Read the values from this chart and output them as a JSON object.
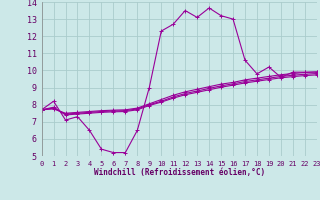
{
  "xlabel": "Windchill (Refroidissement éolien,°C)",
  "bg_color": "#cce8e8",
  "grid_color": "#aacccc",
  "line_color": "#990099",
  "xlim": [
    0,
    23
  ],
  "ylim": [
    5,
    14
  ],
  "xticks": [
    0,
    1,
    2,
    3,
    4,
    5,
    6,
    7,
    8,
    9,
    10,
    11,
    12,
    13,
    14,
    15,
    16,
    17,
    18,
    19,
    20,
    21,
    22,
    23
  ],
  "yticks": [
    5,
    6,
    7,
    8,
    9,
    10,
    11,
    12,
    13,
    14
  ],
  "series": [
    {
      "x": [
        0,
        1,
        2,
        3,
        4,
        5,
        6,
        7,
        8,
        9,
        10,
        11,
        12,
        13,
        14,
        15,
        16,
        17,
        18,
        19,
        20,
        21,
        22,
        23
      ],
      "y": [
        7.7,
        8.2,
        7.1,
        7.3,
        6.5,
        5.4,
        5.2,
        5.2,
        6.5,
        9.0,
        12.3,
        12.7,
        13.5,
        13.1,
        13.65,
        13.2,
        13.0,
        10.6,
        9.8,
        10.2,
        9.6,
        9.9,
        9.9,
        9.9
      ]
    },
    {
      "x": [
        0,
        1,
        2,
        3,
        4,
        5,
        6,
        7,
        8,
        9,
        10,
        11,
        12,
        13,
        14,
        15,
        16,
        17,
        18,
        19,
        20,
        21,
        22,
        23
      ],
      "y": [
        7.7,
        7.75,
        7.5,
        7.55,
        7.6,
        7.65,
        7.68,
        7.7,
        7.8,
        8.05,
        8.3,
        8.55,
        8.75,
        8.9,
        9.05,
        9.2,
        9.3,
        9.45,
        9.55,
        9.65,
        9.75,
        9.82,
        9.88,
        9.92
      ]
    },
    {
      "x": [
        0,
        1,
        2,
        3,
        4,
        5,
        6,
        7,
        8,
        9,
        10,
        11,
        12,
        13,
        14,
        15,
        16,
        17,
        18,
        19,
        20,
        21,
        22,
        23
      ],
      "y": [
        7.7,
        7.8,
        7.45,
        7.5,
        7.55,
        7.6,
        7.63,
        7.65,
        7.75,
        8.0,
        8.2,
        8.45,
        8.65,
        8.8,
        8.95,
        9.1,
        9.22,
        9.35,
        9.45,
        9.55,
        9.65,
        9.72,
        9.78,
        9.82
      ]
    },
    {
      "x": [
        0,
        1,
        2,
        3,
        4,
        5,
        6,
        7,
        8,
        9,
        10,
        11,
        12,
        13,
        14,
        15,
        16,
        17,
        18,
        19,
        20,
        21,
        22,
        23
      ],
      "y": [
        7.7,
        7.85,
        7.4,
        7.45,
        7.5,
        7.55,
        7.58,
        7.6,
        7.7,
        7.95,
        8.15,
        8.38,
        8.58,
        8.72,
        8.87,
        9.02,
        9.14,
        9.27,
        9.37,
        9.47,
        9.57,
        9.64,
        9.7,
        9.74
      ]
    }
  ]
}
